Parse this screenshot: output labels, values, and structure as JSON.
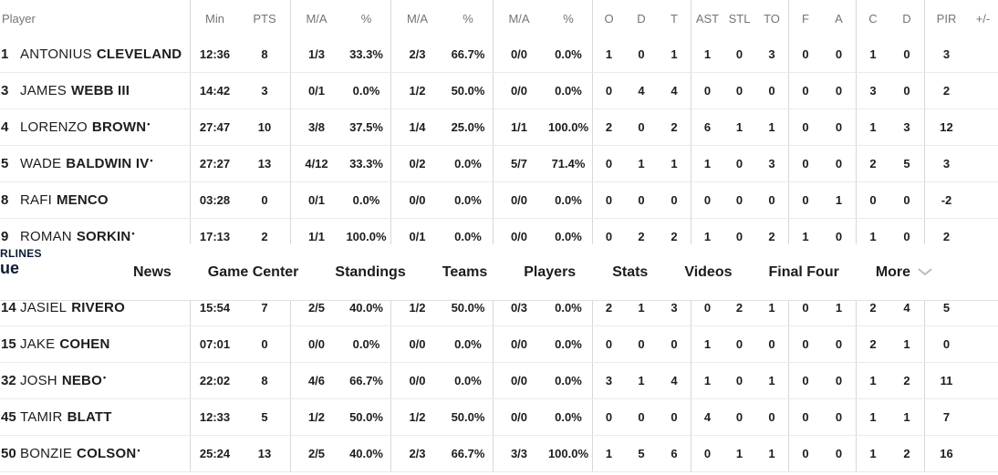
{
  "nav": {
    "logo": {
      "line1": "RLINES",
      "line2": "ue"
    },
    "items": [
      {
        "id": "news",
        "label": "News"
      },
      {
        "id": "game-center",
        "label": "Game Center"
      },
      {
        "id": "standings",
        "label": "Standings"
      },
      {
        "id": "teams",
        "label": "Teams"
      },
      {
        "id": "players",
        "label": "Players"
      },
      {
        "id": "stats",
        "label": "Stats"
      },
      {
        "id": "videos",
        "label": "Videos"
      },
      {
        "id": "final-four",
        "label": "Final Four"
      },
      {
        "id": "more",
        "label": "More",
        "has_chevron": true
      }
    ]
  },
  "box_score": {
    "headers": {
      "player": "Player",
      "min": "Min",
      "pts": "PTS",
      "ma": "M/A",
      "pct": "%",
      "o": "O",
      "d": "D",
      "t": "T",
      "ast": "AST",
      "stl": "STL",
      "to": "TO",
      "f": "F",
      "a": "A",
      "c": "C",
      "d2": "D",
      "pir": "PIR",
      "plus_minus": "+/-"
    },
    "players_top": [
      {
        "num": "1",
        "first": "ANTONIUS",
        "last": "CLEVELAND",
        "starter": false,
        "min": "12:36",
        "pts": "8",
        "fg2_ma": "1/3",
        "fg2_pct": "33.3%",
        "fg3_ma": "2/3",
        "fg3_pct": "66.7%",
        "ft_ma": "0/0",
        "ft_pct": "0.0%",
        "reb_o": "1",
        "reb_d": "0",
        "reb_t": "1",
        "ast": "1",
        "stl": "0",
        "to": "3",
        "f": "0",
        "a": "0",
        "c": "1",
        "d": "0",
        "pir": "3",
        "plus_minus": ""
      },
      {
        "num": "3",
        "first": "JAMES",
        "last": "WEBB III",
        "starter": false,
        "min": "14:42",
        "pts": "3",
        "fg2_ma": "0/1",
        "fg2_pct": "0.0%",
        "fg3_ma": "1/2",
        "fg3_pct": "50.0%",
        "ft_ma": "0/0",
        "ft_pct": "0.0%",
        "reb_o": "0",
        "reb_d": "4",
        "reb_t": "4",
        "ast": "0",
        "stl": "0",
        "to": "0",
        "f": "0",
        "a": "0",
        "c": "3",
        "d": "0",
        "pir": "2",
        "plus_minus": ""
      },
      {
        "num": "4",
        "first": "LORENZO",
        "last": "BROWN",
        "starter": true,
        "min": "27:47",
        "pts": "10",
        "fg2_ma": "3/8",
        "fg2_pct": "37.5%",
        "fg3_ma": "1/4",
        "fg3_pct": "25.0%",
        "ft_ma": "1/1",
        "ft_pct": "100.0%",
        "reb_o": "2",
        "reb_d": "0",
        "reb_t": "2",
        "ast": "6",
        "stl": "1",
        "to": "1",
        "f": "0",
        "a": "0",
        "c": "1",
        "d": "3",
        "pir": "12",
        "plus_minus": ""
      },
      {
        "num": "5",
        "first": "WADE",
        "last": "BALDWIN IV",
        "starter": true,
        "min": "27:27",
        "pts": "13",
        "fg2_ma": "4/12",
        "fg2_pct": "33.3%",
        "fg3_ma": "0/2",
        "fg3_pct": "0.0%",
        "ft_ma": "5/7",
        "ft_pct": "71.4%",
        "reb_o": "0",
        "reb_d": "1",
        "reb_t": "1",
        "ast": "1",
        "stl": "0",
        "to": "3",
        "f": "0",
        "a": "0",
        "c": "2",
        "d": "5",
        "pir": "3",
        "plus_minus": ""
      },
      {
        "num": "8",
        "first": "RAFI",
        "last": "MENCO",
        "starter": false,
        "min": "03:28",
        "pts": "0",
        "fg2_ma": "0/1",
        "fg2_pct": "0.0%",
        "fg3_ma": "0/0",
        "fg3_pct": "0.0%",
        "ft_ma": "0/0",
        "ft_pct": "0.0%",
        "reb_o": "0",
        "reb_d": "0",
        "reb_t": "0",
        "ast": "0",
        "stl": "0",
        "to": "0",
        "f": "0",
        "a": "1",
        "c": "0",
        "d": "0",
        "pir": "-2",
        "plus_minus": ""
      },
      {
        "num": "9",
        "first": "ROMAN",
        "last": "SORKIN",
        "starter": true,
        "min": "17:13",
        "pts": "2",
        "fg2_ma": "1/1",
        "fg2_pct": "100.0%",
        "fg3_ma": "0/1",
        "fg3_pct": "0.0%",
        "ft_ma": "0/0",
        "ft_pct": "0.0%",
        "reb_o": "0",
        "reb_d": "2",
        "reb_t": "2",
        "ast": "1",
        "stl": "0",
        "to": "2",
        "f": "1",
        "a": "0",
        "c": "1",
        "d": "0",
        "pir": "2",
        "plus_minus": ""
      }
    ],
    "players_bottom": [
      {
        "num": "14",
        "first": "JASIEL",
        "last": "RIVERO",
        "starter": false,
        "min": "15:54",
        "pts": "7",
        "fg2_ma": "2/5",
        "fg2_pct": "40.0%",
        "fg3_ma": "1/2",
        "fg3_pct": "50.0%",
        "ft_ma": "0/3",
        "ft_pct": "0.0%",
        "reb_o": "2",
        "reb_d": "1",
        "reb_t": "3",
        "ast": "0",
        "stl": "2",
        "to": "1",
        "f": "0",
        "a": "1",
        "c": "2",
        "d": "4",
        "pir": "5",
        "plus_minus": ""
      },
      {
        "num": "15",
        "first": "JAKE",
        "last": "COHEN",
        "starter": false,
        "min": "07:01",
        "pts": "0",
        "fg2_ma": "0/0",
        "fg2_pct": "0.0%",
        "fg3_ma": "0/0",
        "fg3_pct": "0.0%",
        "ft_ma": "0/0",
        "ft_pct": "0.0%",
        "reb_o": "0",
        "reb_d": "0",
        "reb_t": "0",
        "ast": "1",
        "stl": "0",
        "to": "0",
        "f": "0",
        "a": "0",
        "c": "2",
        "d": "1",
        "pir": "0",
        "plus_minus": ""
      },
      {
        "num": "32",
        "first": "JOSH",
        "last": "NEBO",
        "starter": true,
        "min": "22:02",
        "pts": "8",
        "fg2_ma": "4/6",
        "fg2_pct": "66.7%",
        "fg3_ma": "0/0",
        "fg3_pct": "0.0%",
        "ft_ma": "0/0",
        "ft_pct": "0.0%",
        "reb_o": "3",
        "reb_d": "1",
        "reb_t": "4",
        "ast": "1",
        "stl": "0",
        "to": "1",
        "f": "0",
        "a": "0",
        "c": "1",
        "d": "2",
        "pir": "11",
        "plus_minus": ""
      },
      {
        "num": "45",
        "first": "TAMIR",
        "last": "BLATT",
        "starter": false,
        "min": "12:33",
        "pts": "5",
        "fg2_ma": "1/2",
        "fg2_pct": "50.0%",
        "fg3_ma": "1/2",
        "fg3_pct": "50.0%",
        "ft_ma": "0/0",
        "ft_pct": "0.0%",
        "reb_o": "0",
        "reb_d": "0",
        "reb_t": "0",
        "ast": "4",
        "stl": "0",
        "to": "0",
        "f": "0",
        "a": "0",
        "c": "1",
        "d": "1",
        "pir": "7",
        "plus_minus": ""
      },
      {
        "num": "50",
        "first": "BONZIE",
        "last": "COLSON",
        "starter": true,
        "min": "25:24",
        "pts": "13",
        "fg2_ma": "2/5",
        "fg2_pct": "40.0%",
        "fg3_ma": "2/3",
        "fg3_pct": "66.7%",
        "ft_ma": "3/3",
        "ft_pct": "100.0%",
        "reb_o": "1",
        "reb_d": "5",
        "reb_t": "6",
        "ast": "0",
        "stl": "1",
        "to": "1",
        "f": "0",
        "a": "0",
        "c": "1",
        "d": "2",
        "pir": "16",
        "plus_minus": ""
      }
    ]
  },
  "colors": {
    "logo_navy": "#0c1b33",
    "header_gray": "#70757a",
    "text_dark": "#1b1d1f",
    "divider": "#d5d7d9",
    "row_border": "#e9eaeb",
    "chevron_gray": "#b9bec4"
  }
}
